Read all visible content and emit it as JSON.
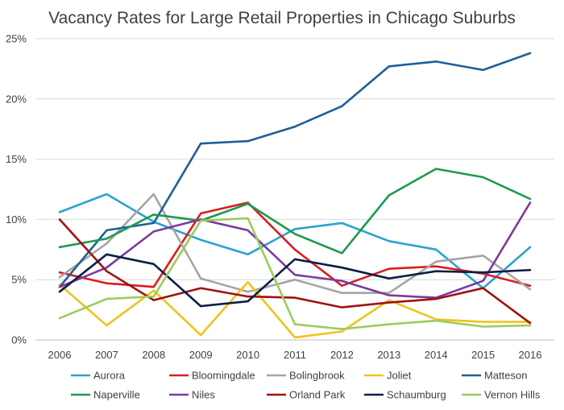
{
  "chart_data": {
    "type": "line",
    "title": "Vacancy Rates for Large Retail Properties in Chicago Suburbs",
    "xlabel": "",
    "ylabel": "",
    "x": [
      "2006",
      "2007",
      "2008",
      "2009",
      "2010",
      "2011",
      "2012",
      "2013",
      "2014",
      "2015",
      "2016"
    ],
    "ylim": [
      0,
      25
    ],
    "yticks": [
      0,
      5,
      10,
      15,
      20,
      25
    ],
    "ytick_labels": [
      "0%",
      "5%",
      "10%",
      "15%",
      "20%",
      "25%"
    ],
    "grid": true,
    "legend_position": "bottom",
    "series": [
      {
        "name": "Aurora",
        "color": "#2aa3cf",
        "values": [
          10.6,
          12.1,
          9.8,
          8.3,
          7.1,
          9.2,
          9.7,
          8.2,
          7.5,
          4.3,
          7.7
        ]
      },
      {
        "name": "Bloomingdale",
        "color": "#d91e1e",
        "values": [
          5.6,
          4.7,
          4.4,
          10.5,
          11.4,
          7.5,
          4.5,
          5.9,
          6.1,
          5.5,
          4.5
        ]
      },
      {
        "name": "Bolingbrook",
        "color": "#a5a5a5",
        "values": [
          5.2,
          8.0,
          12.1,
          5.1,
          4.0,
          5.0,
          3.9,
          3.9,
          6.5,
          7.0,
          4.2
        ]
      },
      {
        "name": "Joliet",
        "color": "#f2c21a",
        "values": [
          4.6,
          1.2,
          4.1,
          0.4,
          4.8,
          0.2,
          0.7,
          3.3,
          1.7,
          1.5,
          1.5
        ]
      },
      {
        "name": "Matteson",
        "color": "#1e5f99",
        "values": [
          4.4,
          9.1,
          9.7,
          16.3,
          16.5,
          17.7,
          19.4,
          22.7,
          23.1,
          22.4,
          23.8
        ]
      },
      {
        "name": "Naperville",
        "color": "#1e9a4f",
        "values": [
          7.7,
          8.4,
          10.4,
          9.9,
          11.3,
          8.8,
          7.2,
          12.0,
          14.2,
          13.5,
          11.7
        ]
      },
      {
        "name": "Niles",
        "color": "#7a3b9e",
        "values": [
          4.4,
          6.0,
          9.0,
          10.0,
          9.1,
          5.4,
          4.9,
          3.7,
          3.5,
          4.9,
          11.4
        ]
      },
      {
        "name": "Orland Park",
        "color": "#a01212",
        "values": [
          10.0,
          5.7,
          3.3,
          4.3,
          3.6,
          3.5,
          2.7,
          3.1,
          3.4,
          4.3,
          1.4
        ]
      },
      {
        "name": "Schaumburg",
        "color": "#0e1f45",
        "values": [
          4.0,
          7.1,
          6.3,
          2.8,
          3.2,
          6.7,
          6.0,
          5.1,
          5.7,
          5.6,
          5.8
        ]
      },
      {
        "name": "Vernon Hills",
        "color": "#9ccc5a",
        "values": [
          1.8,
          3.4,
          3.6,
          9.9,
          10.1,
          1.3,
          0.9,
          1.3,
          1.6,
          1.1,
          1.2
        ]
      }
    ]
  }
}
